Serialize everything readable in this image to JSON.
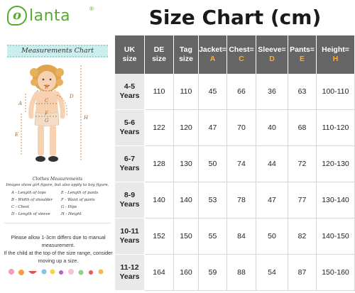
{
  "brand": {
    "logo_letter": "o",
    "logo_word": "lanta",
    "registered": "®"
  },
  "left_panel": {
    "measurements_title": "Measurements Chart",
    "figure_labels": [
      "A",
      "B",
      "C",
      "D",
      "E",
      "F",
      "G",
      "H"
    ],
    "clothes_title": "Clothes Measurements",
    "clothes_subtitle": "Images show girl figure, but also apply to boy figure.",
    "legend_left": [
      "A - Length of tops",
      "B - Width of shoulder",
      "C - Chest",
      "D - Length of sleeve"
    ],
    "legend_right": [
      "E - Length of pants",
      "F - Waist of pants",
      "G - Hips",
      "H - Height"
    ],
    "note_1": "Please allow 1-3cm differs due to manual measurement.",
    "note_2": "If the child at the top of the size range, consider moving up a size."
  },
  "title": "Size Chart (cm)",
  "table": {
    "headers": [
      {
        "top": "UK",
        "bottom": "size",
        "letter": ""
      },
      {
        "top": "DE",
        "bottom": "size",
        "letter": ""
      },
      {
        "top": "Tag",
        "bottom": "size",
        "letter": ""
      },
      {
        "top": "Jacket=",
        "bottom": "",
        "letter": "A"
      },
      {
        "top": "Chest=",
        "bottom": "",
        "letter": "C"
      },
      {
        "top": "Sleeve=",
        "bottom": "",
        "letter": "D"
      },
      {
        "top": "Pants=",
        "bottom": "",
        "letter": "E"
      },
      {
        "top": "Height=",
        "bottom": "",
        "letter": "H"
      }
    ],
    "rows": [
      {
        "uk_top": "4-5",
        "uk_bottom": "Years",
        "values": [
          "110",
          "110",
          "45",
          "66",
          "36",
          "63",
          "100-110"
        ]
      },
      {
        "uk_top": "5-6",
        "uk_bottom": "Years",
        "values": [
          "122",
          "120",
          "47",
          "70",
          "40",
          "68",
          "110-120"
        ]
      },
      {
        "uk_top": "6-7",
        "uk_bottom": "Years",
        "values": [
          "128",
          "130",
          "50",
          "74",
          "44",
          "72",
          "120-130"
        ]
      },
      {
        "uk_top": "8-9",
        "uk_bottom": "Years",
        "values": [
          "140",
          "140",
          "53",
          "78",
          "47",
          "77",
          "130-140"
        ]
      },
      {
        "uk_top": "10-11",
        "uk_bottom": "Years",
        "values": [
          "152",
          "150",
          "55",
          "84",
          "50",
          "82",
          "140-150"
        ]
      },
      {
        "uk_top": "11-12",
        "uk_bottom": "Years",
        "values": [
          "164",
          "160",
          "59",
          "88",
          "54",
          "87",
          "150-160"
        ]
      }
    ]
  },
  "colors": {
    "header_bg": "#656565",
    "row_label_bg": "#e9e9e9",
    "letter_accent": "#ffaa33",
    "brand_green": "#5aa832",
    "title_band": "#ccefee"
  }
}
